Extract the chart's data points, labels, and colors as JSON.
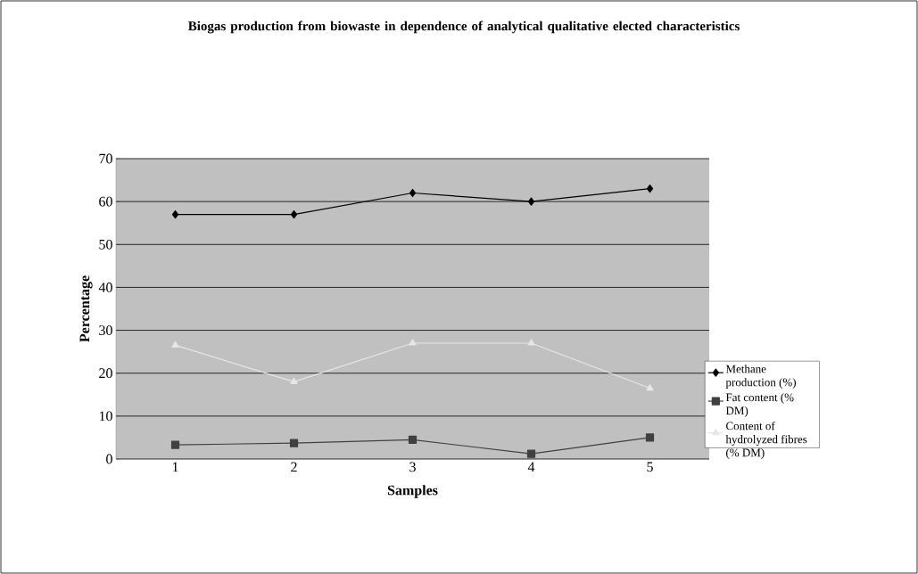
{
  "chart_data": {
    "type": "line",
    "title": "Biogas production from biowaste in dependence of analytical qualitative elected characteristics",
    "xlabel": "Samples",
    "ylabel": "Percentage",
    "categories": [
      "1",
      "2",
      "3",
      "4",
      "5"
    ],
    "series": [
      {
        "name": "Methane production (%)",
        "color": "#000000",
        "marker": "diamond",
        "values": [
          57,
          57,
          62,
          60,
          63
        ]
      },
      {
        "name": "Fat content (% DM)",
        "color": "#404040",
        "marker": "square",
        "values": [
          3.3,
          3.7,
          4.5,
          1.2,
          5
        ]
      },
      {
        "name": "Content of hydrolyzed fibres (% DM)",
        "color": "#e6e6e6",
        "marker": "triangle",
        "values": [
          26.5,
          18,
          27,
          27,
          16.5
        ]
      }
    ],
    "ylim": [
      0,
      70
    ],
    "yticks": [
      0,
      10,
      20,
      30,
      40,
      50,
      60,
      70
    ],
    "grid": "y",
    "legend": "right"
  }
}
